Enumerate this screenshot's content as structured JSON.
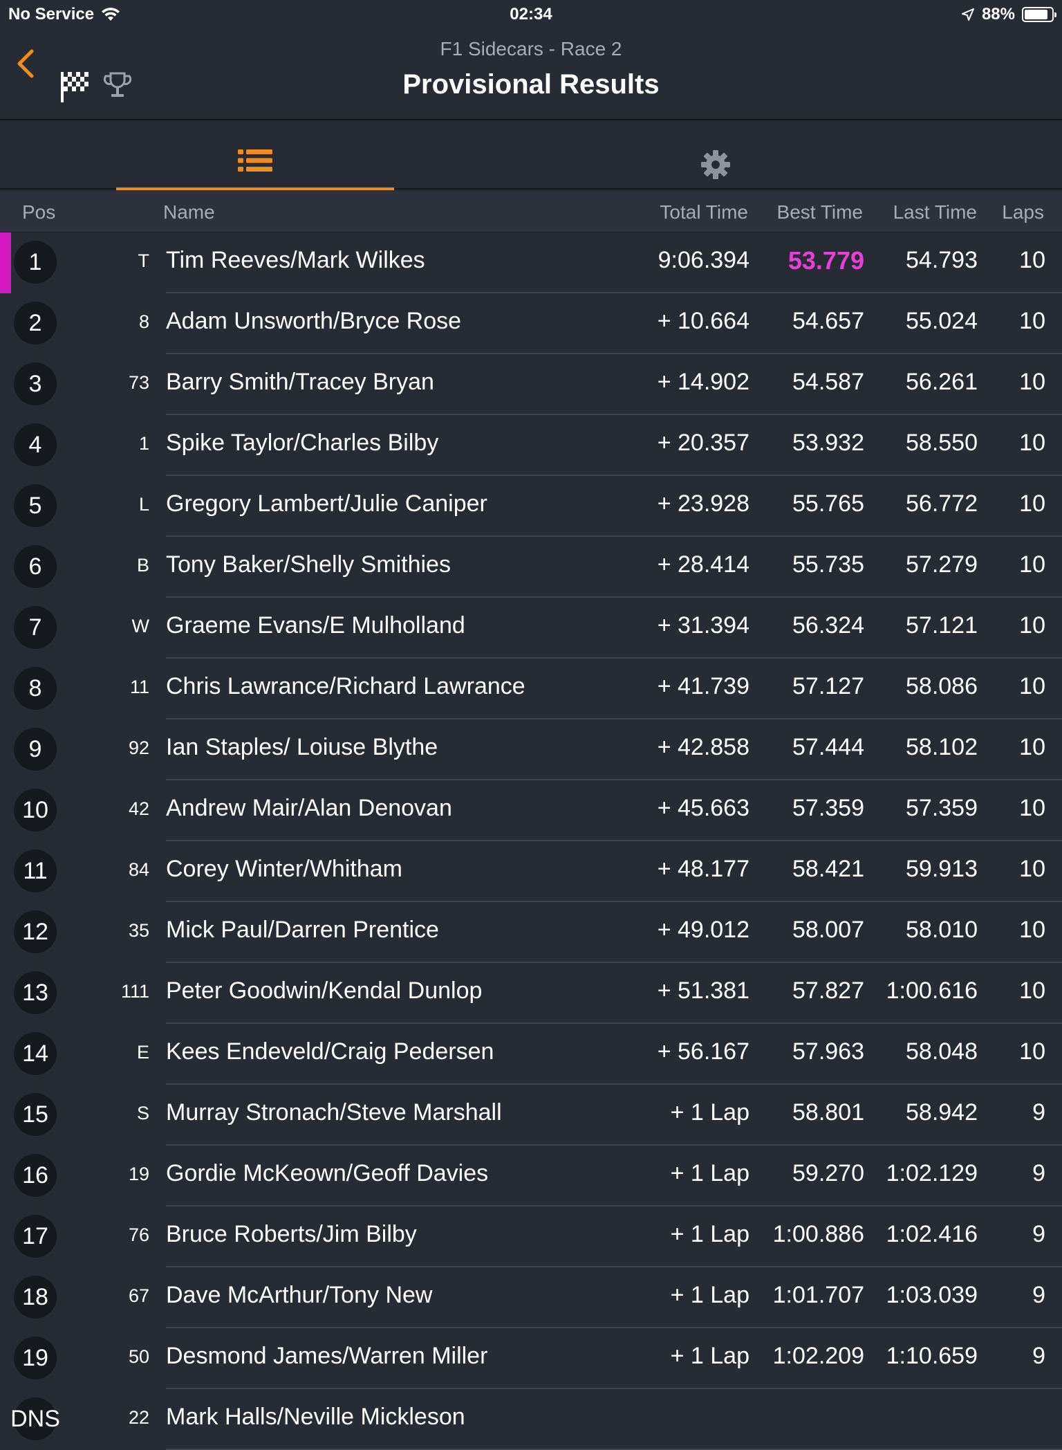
{
  "status_bar": {
    "carrier": "No Service",
    "time": "02:34",
    "battery": "88%",
    "battery_level": 0.88
  },
  "header": {
    "subtitle": "F1 Sidecars - Race 2",
    "title": "Provisional Results",
    "icons": [
      "back-chevron-icon",
      "checkered-flag-icon",
      "trophy-icon"
    ]
  },
  "tabs": [
    {
      "icon": "list-icon",
      "active": true
    },
    {
      "icon": "gear-icon",
      "active": false
    }
  ],
  "columns": {
    "pos": "Pos",
    "name": "Name",
    "total": "Total Time",
    "best": "Best Time",
    "last": "Last Time",
    "laps": "Laps"
  },
  "colors": {
    "accent": "#f08c1e",
    "leader": "#d318c4",
    "fastest": "#e83fd8",
    "background": "#272b34"
  },
  "rows": [
    {
      "pos": "1",
      "num": "T",
      "name": "Tim Reeves/Mark Wilkes",
      "total": "9:06.394",
      "best": "53.779",
      "last": "54.793",
      "laps": "10",
      "fastest": true,
      "leader": true
    },
    {
      "pos": "2",
      "num": "8",
      "name": "Adam Unsworth/Bryce Rose",
      "total": "+ 10.664",
      "best": "54.657",
      "last": "55.024",
      "laps": "10"
    },
    {
      "pos": "3",
      "num": "73",
      "name": "Barry Smith/Tracey Bryan",
      "total": "+ 14.902",
      "best": "54.587",
      "last": "56.261",
      "laps": "10"
    },
    {
      "pos": "4",
      "num": "1",
      "name": "Spike Taylor/Charles Bilby",
      "total": "+ 20.357",
      "best": "53.932",
      "last": "58.550",
      "laps": "10"
    },
    {
      "pos": "5",
      "num": "L",
      "name": "Gregory Lambert/Julie Caniper",
      "total": "+ 23.928",
      "best": "55.765",
      "last": "56.772",
      "laps": "10"
    },
    {
      "pos": "6",
      "num": "B",
      "name": "Tony Baker/Shelly Smithies",
      "total": "+ 28.414",
      "best": "55.735",
      "last": "57.279",
      "laps": "10"
    },
    {
      "pos": "7",
      "num": "W",
      "name": "Graeme Evans/E Mulholland",
      "total": "+ 31.394",
      "best": "56.324",
      "last": "57.121",
      "laps": "10"
    },
    {
      "pos": "8",
      "num": "11",
      "name": "Chris Lawrance/Richard Lawrance",
      "total": "+ 41.739",
      "best": "57.127",
      "last": "58.086",
      "laps": "10"
    },
    {
      "pos": "9",
      "num": "92",
      "name": "Ian Staples/ Loiuse Blythe",
      "total": "+ 42.858",
      "best": "57.444",
      "last": "58.102",
      "laps": "10"
    },
    {
      "pos": "10",
      "num": "42",
      "name": "Andrew Mair/Alan Denovan",
      "total": "+ 45.663",
      "best": "57.359",
      "last": "57.359",
      "laps": "10"
    },
    {
      "pos": "11",
      "num": "84",
      "name": "Corey Winter/Whitham",
      "total": "+ 48.177",
      "best": "58.421",
      "last": "59.913",
      "laps": "10"
    },
    {
      "pos": "12",
      "num": "35",
      "name": "Mick Paul/Darren Prentice",
      "total": "+ 49.012",
      "best": "58.007",
      "last": "58.010",
      "laps": "10"
    },
    {
      "pos": "13",
      "num": "111",
      "name": "Peter Goodwin/Kendal Dunlop",
      "total": "+ 51.381",
      "best": "57.827",
      "last": "1:00.616",
      "laps": "10"
    },
    {
      "pos": "14",
      "num": "E",
      "name": "Kees Endeveld/Craig Pedersen",
      "total": "+ 56.167",
      "best": "57.963",
      "last": "58.048",
      "laps": "10"
    },
    {
      "pos": "15",
      "num": "S",
      "name": "Murray Stronach/Steve Marshall",
      "total": "+ 1 Lap",
      "best": "58.801",
      "last": "58.942",
      "laps": "9"
    },
    {
      "pos": "16",
      "num": "19",
      "name": "Gordie McKeown/Geoff Davies",
      "total": "+ 1 Lap",
      "best": "59.270",
      "last": "1:02.129",
      "laps": "9"
    },
    {
      "pos": "17",
      "num": "76",
      "name": "Bruce Roberts/Jim Bilby",
      "total": "+ 1 Lap",
      "best": "1:00.886",
      "last": "1:02.416",
      "laps": "9"
    },
    {
      "pos": "18",
      "num": "67",
      "name": "Dave McArthur/Tony New",
      "total": "+ 1 Lap",
      "best": "1:01.707",
      "last": "1:03.039",
      "laps": "9"
    },
    {
      "pos": "19",
      "num": "50",
      "name": "Desmond James/Warren Miller",
      "total": "+ 1 Lap",
      "best": "1:02.209",
      "last": "1:10.659",
      "laps": "9"
    },
    {
      "pos": "DNS",
      "num": "22",
      "name": "Mark Halls/Neville Mickleson",
      "total": "",
      "best": "",
      "last": "",
      "laps": ""
    }
  ]
}
